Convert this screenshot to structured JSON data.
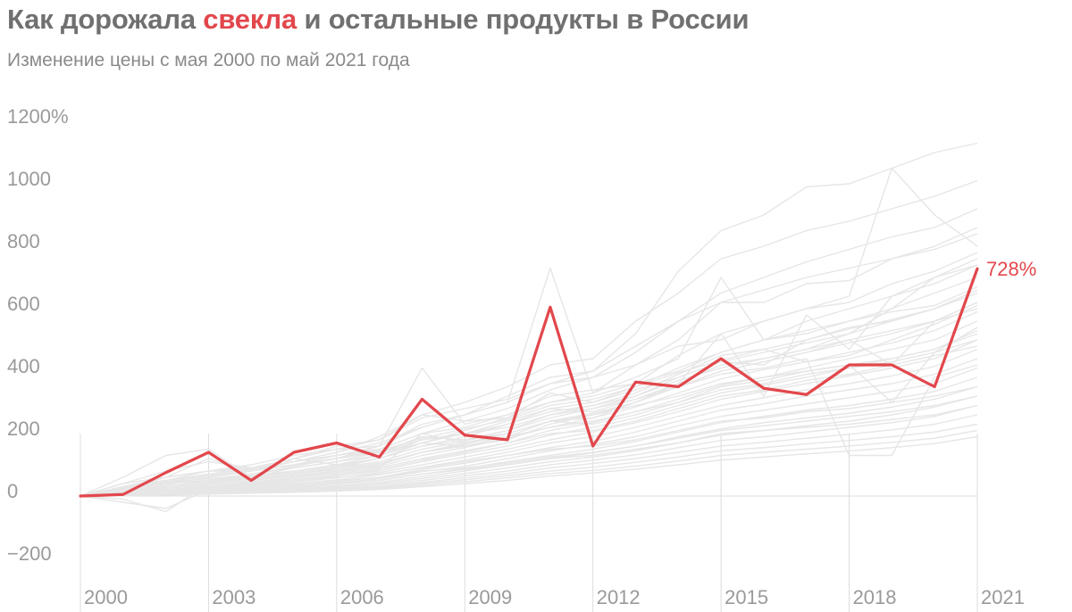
{
  "title": {
    "part1": "Как дорожала ",
    "highlight": "свекла",
    "part2": " и остальные продукты в России"
  },
  "subtitle": "Изменение цены с мая 2000 по май 2021 года",
  "colors": {
    "highlight": "#e2474c",
    "background_lines": "#e6e6e6",
    "grid": "#dcdcdc",
    "text": "#9a9a9a"
  },
  "chart_data": {
    "type": "line",
    "title": "Как дорожала свекла и остальные продукты в России",
    "subtitle": "Изменение цены с мая 2000 по май 2021 года",
    "ylim": [
      -200,
      1200
    ],
    "y_ticks": [
      -200,
      0,
      200,
      400,
      600,
      800,
      1000,
      1200
    ],
    "y_tick_labels": [
      "−200",
      "0",
      "200",
      "400",
      "600",
      "800",
      "1000",
      "1200%"
    ],
    "x_ticks": [
      2000,
      2003,
      2006,
      2009,
      2012,
      2015,
      2018,
      2021
    ],
    "x_tick_labels": [
      "2000",
      "2003",
      "2006",
      "2009",
      "2012",
      "2015",
      "2018",
      "2021"
    ],
    "x": [
      2000,
      2001,
      2002,
      2003,
      2004,
      2005,
      2006,
      2007,
      2008,
      2009,
      2010,
      2011,
      2012,
      2013,
      2014,
      2015,
      2016,
      2017,
      2018,
      2019,
      2020,
      2021
    ],
    "highlight_series": {
      "name": "свекла",
      "values": [
        0,
        5,
        75,
        140,
        50,
        140,
        170,
        125,
        310,
        195,
        180,
        605,
        160,
        365,
        350,
        440,
        345,
        325,
        420,
        420,
        350,
        728
      ],
      "end_label": "728%"
    },
    "background_series": [
      [
        0,
        40,
        60,
        80,
        90,
        110,
        140,
        170,
        220,
        260,
        320,
        380,
        400,
        520,
        720,
        850,
        900,
        990,
        1000,
        1050,
        1100,
        1130
      ],
      [
        0,
        30,
        50,
        70,
        90,
        120,
        150,
        180,
        260,
        300,
        350,
        420,
        440,
        560,
        650,
        760,
        800,
        850,
        880,
        920,
        960,
        1010
      ],
      [
        0,
        20,
        40,
        60,
        80,
        100,
        120,
        150,
        200,
        240,
        280,
        340,
        380,
        460,
        560,
        650,
        700,
        750,
        790,
        830,
        860,
        920
      ],
      [
        0,
        25,
        50,
        70,
        85,
        110,
        130,
        160,
        230,
        260,
        300,
        730,
        330,
        420,
        500,
        620,
        620,
        680,
        690,
        760,
        800,
        860
      ],
      [
        0,
        30,
        60,
        80,
        80,
        100,
        120,
        160,
        410,
        230,
        260,
        320,
        340,
        360,
        450,
        520,
        560,
        600,
        640,
        1050,
        900,
        800
      ],
      [
        0,
        20,
        40,
        50,
        60,
        80,
        100,
        130,
        170,
        210,
        250,
        300,
        330,
        380,
        440,
        700,
        500,
        560,
        600,
        640,
        680,
        740
      ],
      [
        0,
        15,
        30,
        45,
        60,
        75,
        95,
        120,
        160,
        190,
        230,
        280,
        300,
        350,
        410,
        460,
        500,
        530,
        560,
        600,
        650,
        700
      ],
      [
        0,
        15,
        25,
        40,
        55,
        70,
        90,
        110,
        150,
        175,
        210,
        250,
        280,
        320,
        380,
        430,
        460,
        490,
        520,
        560,
        600,
        660
      ],
      [
        0,
        10,
        25,
        35,
        50,
        65,
        80,
        100,
        140,
        165,
        200,
        240,
        265,
        300,
        350,
        400,
        430,
        460,
        490,
        520,
        560,
        620
      ],
      [
        0,
        10,
        20,
        30,
        45,
        60,
        75,
        95,
        130,
        155,
        185,
        220,
        250,
        285,
        330,
        375,
        405,
        430,
        460,
        490,
        530,
        590
      ],
      [
        0,
        10,
        20,
        30,
        40,
        55,
        70,
        90,
        120,
        145,
        170,
        210,
        235,
        270,
        310,
        355,
        380,
        410,
        440,
        470,
        500,
        560
      ],
      [
        0,
        8,
        18,
        26,
        36,
        50,
        65,
        80,
        110,
        135,
        160,
        195,
        220,
        250,
        290,
        330,
        355,
        380,
        410,
        440,
        470,
        530
      ],
      [
        0,
        8,
        15,
        24,
        34,
        45,
        58,
        75,
        100,
        125,
        150,
        180,
        205,
        235,
        270,
        310,
        335,
        360,
        385,
        410,
        440,
        500
      ],
      [
        0,
        6,
        14,
        22,
        30,
        40,
        52,
        68,
        92,
        115,
        140,
        170,
        190,
        220,
        255,
        290,
        315,
        340,
        360,
        385,
        415,
        470
      ],
      [
        0,
        5,
        12,
        20,
        28,
        36,
        46,
        60,
        85,
        105,
        130,
        155,
        175,
        205,
        240,
        275,
        295,
        320,
        340,
        360,
        390,
        440
      ],
      [
        0,
        5,
        10,
        18,
        25,
        32,
        42,
        55,
        78,
        95,
        120,
        145,
        165,
        190,
        225,
        255,
        275,
        295,
        315,
        335,
        360,
        410
      ],
      [
        0,
        4,
        9,
        15,
        22,
        28,
        38,
        50,
        70,
        88,
        110,
        130,
        150,
        175,
        205,
        235,
        255,
        275,
        290,
        310,
        335,
        380
      ],
      [
        0,
        3,
        8,
        13,
        19,
        25,
        33,
        44,
        62,
        80,
        100,
        120,
        138,
        160,
        190,
        215,
        235,
        250,
        265,
        285,
        310,
        350
      ],
      [
        0,
        3,
        7,
        12,
        17,
        22,
        30,
        40,
        56,
        72,
        90,
        110,
        125,
        145,
        170,
        195,
        210,
        225,
        240,
        260,
        285,
        320
      ],
      [
        0,
        2,
        6,
        10,
        15,
        20,
        26,
        35,
        50,
        65,
        80,
        100,
        115,
        132,
        155,
        178,
        190,
        205,
        220,
        235,
        255,
        290
      ],
      [
        0,
        2,
        5,
        9,
        13,
        18,
        23,
        30,
        44,
        58,
        72,
        90,
        104,
        120,
        140,
        160,
        172,
        185,
        198,
        212,
        230,
        260
      ],
      [
        0,
        2,
        4,
        8,
        12,
        16,
        20,
        27,
        40,
        52,
        65,
        80,
        92,
        108,
        125,
        145,
        155,
        167,
        178,
        190,
        205,
        230
      ],
      [
        0,
        1,
        4,
        7,
        10,
        14,
        18,
        24,
        35,
        46,
        58,
        72,
        82,
        96,
        112,
        130,
        140,
        150,
        160,
        172,
        185,
        210
      ],
      [
        0,
        1,
        3,
        6,
        9,
        12,
        16,
        21,
        30,
        40,
        50,
        64,
        74,
        86,
        100,
        115,
        125,
        135,
        144,
        155,
        168,
        190
      ],
      [
        0,
        60,
        130,
        150,
        60,
        120,
        100,
        90,
        200,
        170,
        190,
        240,
        250,
        300,
        360,
        420,
        440,
        470,
        520,
        600,
        700,
        760
      ],
      [
        0,
        20,
        60,
        120,
        80,
        110,
        140,
        190,
        260,
        240,
        250,
        330,
        300,
        340,
        380,
        430,
        420,
        500,
        540,
        560,
        600,
        650
      ],
      [
        0,
        -10,
        -50,
        40,
        60,
        90,
        110,
        140,
        190,
        180,
        210,
        260,
        290,
        330,
        390,
        450,
        470,
        430,
        450,
        500,
        550,
        610
      ],
      [
        0,
        -20,
        -40,
        20,
        50,
        70,
        90,
        120,
        170,
        160,
        180,
        230,
        260,
        300,
        350,
        400,
        430,
        460,
        500,
        420,
        560,
        600
      ],
      [
        0,
        10,
        30,
        50,
        70,
        90,
        110,
        130,
        180,
        200,
        240,
        280,
        270,
        310,
        360,
        520,
        320,
        580,
        470,
        640,
        700,
        740
      ],
      [
        0,
        30,
        50,
        80,
        100,
        130,
        150,
        160,
        220,
        260,
        300,
        360,
        380,
        420,
        480,
        500,
        560,
        600,
        620,
        680,
        720,
        780
      ],
      [
        0,
        15,
        35,
        60,
        80,
        100,
        130,
        150,
        200,
        220,
        260,
        300,
        320,
        360,
        400,
        460,
        500,
        520,
        560,
        590,
        610,
        670
      ],
      [
        0,
        20,
        45,
        55,
        70,
        95,
        120,
        145,
        185,
        215,
        245,
        290,
        310,
        350,
        395,
        435,
        470,
        500,
        535,
        565,
        600,
        650
      ],
      [
        0,
        10,
        20,
        30,
        40,
        60,
        80,
        100,
        140,
        170,
        200,
        240,
        230,
        260,
        300,
        350,
        370,
        400,
        420,
        440,
        470,
        520
      ],
      [
        0,
        5,
        15,
        25,
        35,
        50,
        65,
        85,
        115,
        140,
        170,
        200,
        210,
        240,
        280,
        320,
        340,
        370,
        390,
        420,
        450,
        480
      ],
      [
        0,
        10,
        20,
        30,
        40,
        50,
        60,
        70,
        90,
        110,
        130,
        150,
        160,
        180,
        210,
        240,
        250,
        270,
        280,
        300,
        320,
        350
      ],
      [
        0,
        5,
        10,
        15,
        20,
        30,
        40,
        50,
        70,
        85,
        100,
        120,
        130,
        150,
        170,
        200,
        210,
        220,
        230,
        245,
        260,
        290
      ],
      [
        0,
        40,
        80,
        110,
        90,
        120,
        160,
        180,
        250,
        280,
        310,
        360,
        400,
        480,
        560,
        620,
        660,
        700,
        730,
        760,
        790,
        840
      ],
      [
        0,
        25,
        45,
        65,
        80,
        100,
        120,
        140,
        180,
        200,
        220,
        260,
        280,
        310,
        350,
        390,
        410,
        440,
        130,
        130,
        380,
        420
      ],
      [
        0,
        15,
        30,
        50,
        65,
        80,
        100,
        120,
        160,
        180,
        200,
        240,
        260,
        290,
        320,
        360,
        380,
        400,
        420,
        300,
        460,
        500
      ],
      [
        0,
        10,
        25,
        40,
        55,
        70,
        85,
        105,
        140,
        160,
        190,
        220,
        240,
        270,
        300,
        340,
        360,
        390,
        410,
        430,
        460,
        540
      ],
      [
        0,
        20,
        40,
        60,
        80,
        100,
        120,
        140,
        170,
        200,
        230,
        270,
        290,
        320,
        370,
        410,
        440,
        470,
        500,
        530,
        560,
        620
      ],
      [
        0,
        8,
        16,
        24,
        32,
        40,
        50,
        60,
        80,
        90,
        105,
        125,
        140,
        160,
        185,
        210,
        225,
        240,
        255,
        270,
        290,
        320
      ]
    ]
  }
}
